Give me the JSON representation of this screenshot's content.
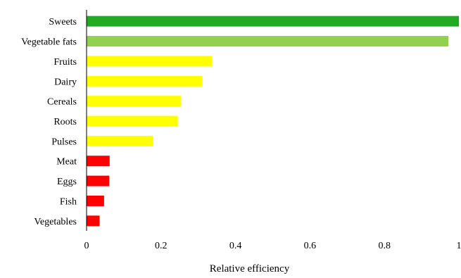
{
  "chart_data": {
    "type": "bar",
    "orientation": "horizontal",
    "title": "",
    "xlabel": "Relative efficiency",
    "ylabel": "",
    "xlim": [
      0,
      1
    ],
    "x_ticks": [
      0,
      0.2,
      0.4,
      0.6,
      0.8,
      1
    ],
    "x_tick_labels": [
      "0",
      "0.2",
      "0.4",
      "0.6",
      "0.8",
      "1"
    ],
    "grid": false,
    "legend": "none",
    "categories": [
      "Sweets",
      "Vegetable fats",
      "Fruits",
      "Dairy",
      "Cereals",
      "Roots",
      "Pulses",
      "Meat",
      "Eggs",
      "Fish",
      "Vegetables"
    ],
    "values": [
      1.0,
      0.972,
      0.337,
      0.311,
      0.253,
      0.245,
      0.178,
      0.062,
      0.061,
      0.047,
      0.035
    ],
    "bar_colors": [
      "#22aa22",
      "#92d050",
      "#ffff00",
      "#ffff00",
      "#ffff00",
      "#ffff00",
      "#ffff00",
      "#ff0000",
      "#ff0000",
      "#ff0000",
      "#ff0000"
    ]
  }
}
